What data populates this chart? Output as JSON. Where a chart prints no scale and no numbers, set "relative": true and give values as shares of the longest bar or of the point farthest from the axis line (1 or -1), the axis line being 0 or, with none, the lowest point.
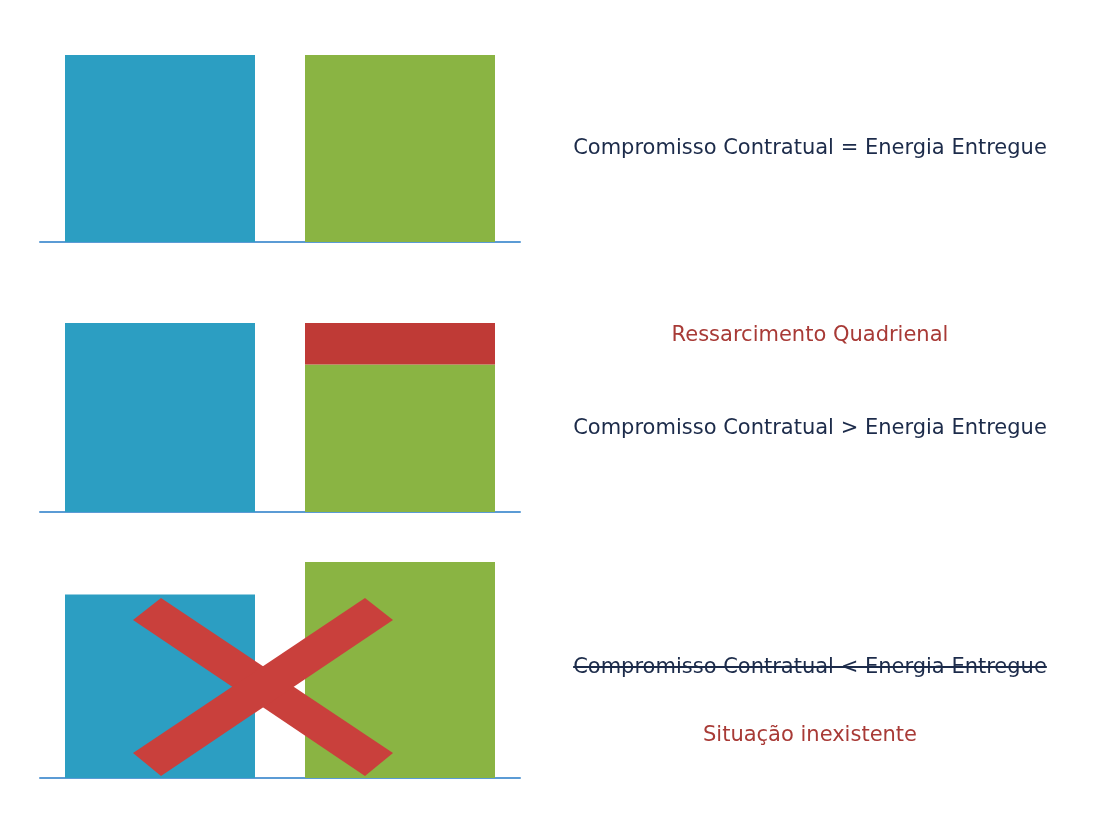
{
  "chart_data": [
    {
      "type": "bar",
      "relative": true,
      "categories": [
        null,
        null
      ],
      "values": [
        1,
        1
      ],
      "colors": [
        "#2c9ec2",
        "#8ab443"
      ],
      "annotations": [
        "Compromisso Contratual = Energia Entregue"
      ]
    },
    {
      "type": "bar",
      "relative": true,
      "stacked": true,
      "categories": [
        null,
        null
      ],
      "series": [
        {
          "color": "#2c9ec2",
          "values": [
            1,
            null
          ]
        },
        {
          "color": "#8ab443",
          "values": [
            null,
            0.78
          ]
        },
        {
          "color": "#bf3a36",
          "values": [
            null,
            0.22
          ]
        }
      ],
      "annotations": [
        "Ressarcimento Quadrienal",
        "Compromisso Contratual > Energia Entregue"
      ]
    },
    {
      "type": "bar",
      "relative": true,
      "categories": [
        null,
        null
      ],
      "values": [
        0.85,
        1
      ],
      "colors": [
        "#2c9ec2",
        "#8ab443"
      ],
      "annotations": [
        "Compromisso Contratual < Energia Entregue",
        "Situação inexistente"
      ]
    }
  ]
}
